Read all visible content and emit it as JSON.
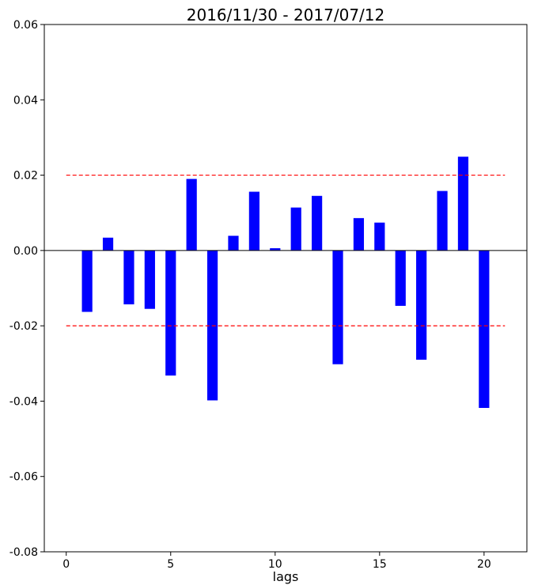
{
  "chart_data": {
    "type": "bar",
    "title": "2016/11/30 - 2017/07/12",
    "xlabel": "lags",
    "ylabel": "",
    "xlim": [
      -1.05,
      22.05
    ],
    "ylim": [
      -0.08,
      0.06
    ],
    "x_ticks": [
      0,
      5,
      10,
      15,
      20
    ],
    "y_ticks": [
      -0.08,
      -0.06,
      -0.04,
      -0.02,
      0.0,
      0.02,
      0.04,
      0.06
    ],
    "x_tick_labels": [
      "0",
      "5",
      "10",
      "15",
      "20"
    ],
    "y_tick_labels": [
      "-0.08",
      "-0.06",
      "-0.04",
      "-0.02",
      "0.00",
      "0.02",
      "0.04",
      "0.06"
    ],
    "bar_width": 0.5,
    "bar_color": "#0000ff",
    "x": [
      1,
      2,
      3,
      4,
      5,
      6,
      7,
      8,
      9,
      10,
      11,
      12,
      13,
      14,
      15,
      16,
      17,
      18,
      19,
      20
    ],
    "values": [
      -0.0163,
      0.0034,
      -0.0143,
      -0.0155,
      -0.0332,
      0.019,
      -0.0398,
      0.0039,
      0.0156,
      0.0006,
      0.0114,
      0.0145,
      -0.0302,
      0.0086,
      0.0074,
      -0.0147,
      -0.029,
      0.0158,
      0.0249,
      -0.0418
    ],
    "zero_line": {
      "y": 0.0,
      "color": "#000000"
    },
    "confidence_bands": {
      "upper": 0.02,
      "lower": -0.02,
      "x_range": [
        0,
        21
      ],
      "color": "#ff0000",
      "style": "dashed"
    },
    "grid": false,
    "legend": "none"
  }
}
